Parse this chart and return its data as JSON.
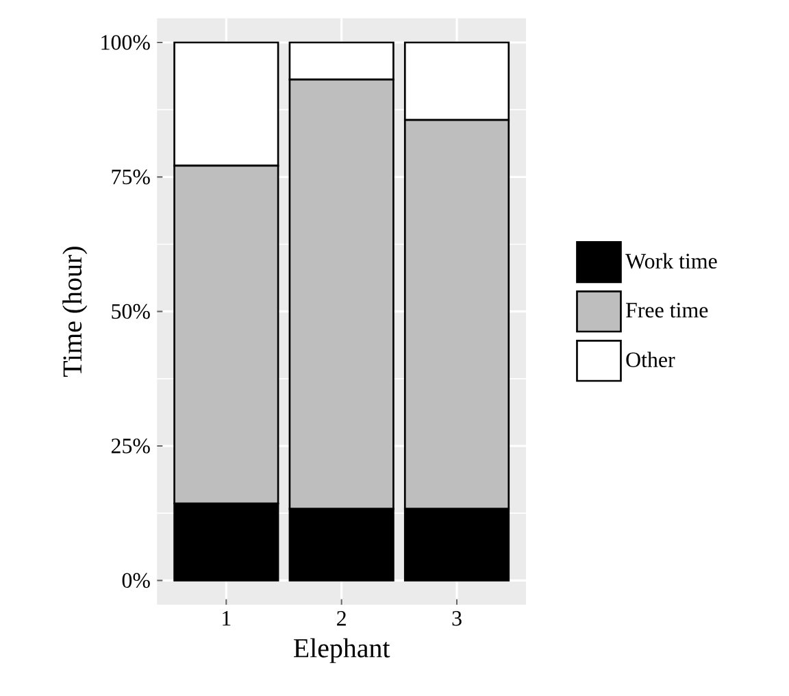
{
  "chart_data": {
    "type": "bar",
    "stacked": true,
    "xlabel": "Elephant",
    "ylabel": "Time (hour)",
    "categories": [
      "1",
      "2",
      "3"
    ],
    "series": [
      {
        "name": "Work time",
        "color": "#000000",
        "values": [
          14.3,
          13.3,
          13.3
        ]
      },
      {
        "name": "Free time",
        "color": "#bebebe",
        "values": [
          62.8,
          79.8,
          72.3
        ]
      },
      {
        "name": "Other",
        "color": "#ffffff",
        "values": [
          22.9,
          6.9,
          14.4
        ]
      }
    ],
    "ylim": [
      0,
      100
    ],
    "yticks": [
      {
        "value": 0,
        "label": "0%"
      },
      {
        "value": 25,
        "label": "25%"
      },
      {
        "value": 50,
        "label": "50%"
      },
      {
        "value": 75,
        "label": "75%"
      },
      {
        "value": 100,
        "label": "100%"
      }
    ],
    "grid": true,
    "legend": "right"
  }
}
